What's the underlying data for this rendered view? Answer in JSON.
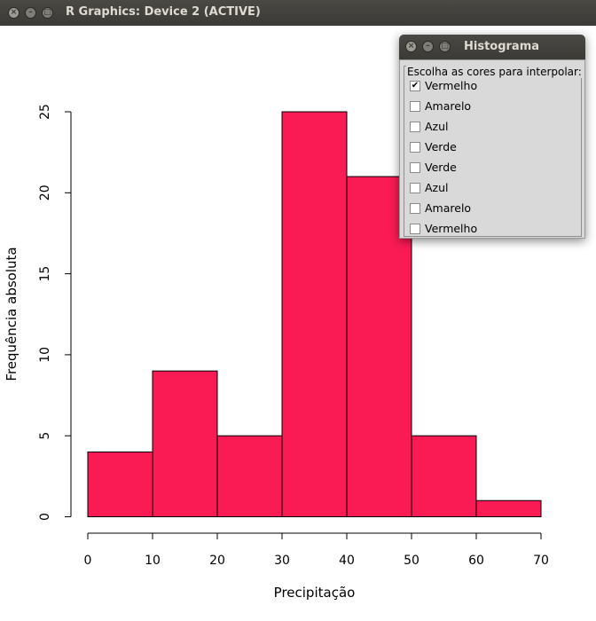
{
  "window": {
    "title": "R Graphics: Device 2 (ACTIVE)",
    "buttons": [
      "close",
      "minimize",
      "maximize"
    ]
  },
  "popup": {
    "title": "Histograma",
    "group_label": "Escolha as cores para interpolar:",
    "options": [
      {
        "label": "Vermelho",
        "checked": true
      },
      {
        "label": "Amarelo",
        "checked": false
      },
      {
        "label": "Azul",
        "checked": false
      },
      {
        "label": "Verde",
        "checked": false
      },
      {
        "label": "Verde",
        "checked": false
      },
      {
        "label": "Azul",
        "checked": false
      },
      {
        "label": "Amarelo",
        "checked": false
      },
      {
        "label": "Vermelho",
        "checked": false
      }
    ]
  },
  "chart_data": {
    "type": "bar",
    "subtype": "histogram",
    "bin_edges": [
      0,
      10,
      20,
      30,
      40,
      50,
      60,
      70
    ],
    "values": [
      4,
      9,
      5,
      25,
      21,
      5,
      1
    ],
    "xlabel": "Precipitação",
    "ylabel": "Frequência absoluta",
    "xlim": [
      0,
      70
    ],
    "ylim": [
      0,
      25
    ],
    "xticks": [
      0,
      10,
      20,
      30,
      40,
      50,
      60,
      70
    ],
    "yticks": [
      0,
      5,
      10,
      15,
      20,
      25
    ],
    "grid": false,
    "bar_color": "#fa1b54",
    "bar_border_color": "#000000"
  }
}
